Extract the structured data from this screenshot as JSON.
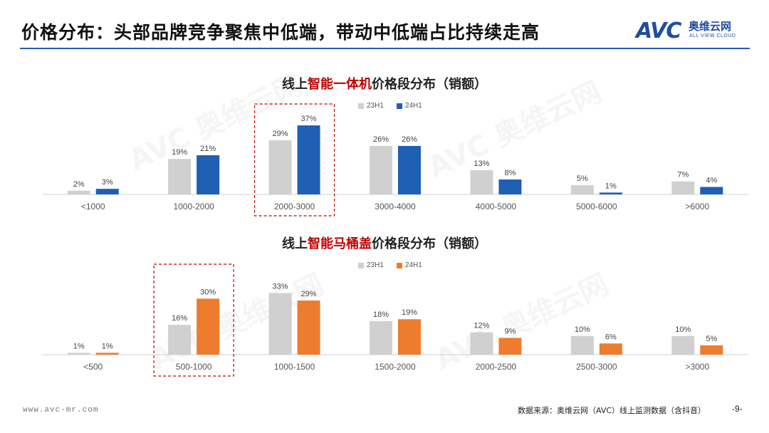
{
  "header": {
    "title": "价格分布：头部品牌竞争聚焦中低端，带动中低端占比持续走高",
    "logo_mark": "AVC",
    "logo_cn": "奥维云网",
    "logo_en": "ALL VIEW CLOUD"
  },
  "colors": {
    "grey": "#d0d0d0",
    "blue": "#1f5fb4",
    "orange": "#ee7c2e",
    "highlight_box": "#c00000"
  },
  "chart_data": [
    {
      "type": "bar",
      "title_prefix": "线上",
      "title_highlight": "智能一体机",
      "title_suffix": "价格段分布（销额）",
      "categories": [
        "<1000",
        "1000-2000",
        "2000-3000",
        "3000-4000",
        "4000-5000",
        "5000-6000",
        ">6000"
      ],
      "series": [
        {
          "name": "23H1",
          "values": [
            2,
            19,
            29,
            26,
            13,
            5,
            7
          ],
          "labels": [
            "2%",
            "19%",
            "29%",
            "26%",
            "13%",
            "5%",
            "7%"
          ],
          "color": "#d0d0d0"
        },
        {
          "name": "24H1",
          "values": [
            3,
            21,
            37,
            26,
            8,
            1,
            4
          ],
          "labels": [
            "3%",
            "21%",
            "37%",
            "26%",
            "8%",
            "1%",
            "4%"
          ],
          "color": "#1f5fb4"
        }
      ],
      "highlight_category": "2000-3000",
      "legend_position": "top-center",
      "grid": false
    },
    {
      "type": "bar",
      "title_prefix": "线上",
      "title_highlight": "智能马桶盖",
      "title_suffix": "价格段分布（销额）",
      "categories": [
        "<500",
        "500-1000",
        "1000-1500",
        "1500-2000",
        "2000-2500",
        "2500-3000",
        ">3000"
      ],
      "series": [
        {
          "name": "23H1",
          "values": [
            1,
            16,
            33,
            18,
            12,
            10,
            10
          ],
          "labels": [
            "1%",
            "16%",
            "33%",
            "18%",
            "12%",
            "10%",
            "10%"
          ],
          "color": "#d0d0d0"
        },
        {
          "name": "24H1",
          "values": [
            1,
            30,
            29,
            19,
            9,
            6,
            5
          ],
          "labels": [
            "1%",
            "30%",
            "29%",
            "19%",
            "9%",
            "6%",
            "5%"
          ],
          "color": "#ee7c2e"
        }
      ],
      "highlight_category": "500-1000",
      "legend_position": "top-center",
      "grid": false
    }
  ],
  "watermark": "AVC 奥维云网",
  "footer": {
    "url": "www.avc-mr.com",
    "source": "数据来源：奥维云网（AVC）线上监测数据（含抖音）",
    "page": "-9-"
  }
}
